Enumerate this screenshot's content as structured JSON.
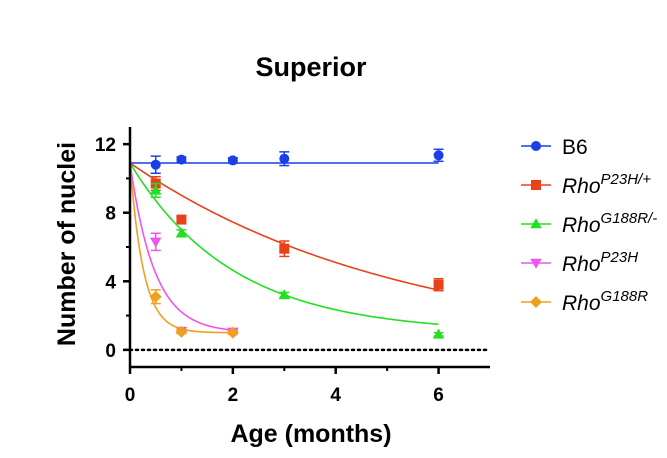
{
  "chart_data": {
    "type": "scatter",
    "title": "Superior",
    "xlabel": "Age (months)",
    "ylabel": "Number of nuclei",
    "xlim": [
      0,
      7
    ],
    "ylim": [
      -1,
      13
    ],
    "xticks": [
      0,
      2,
      4,
      6
    ],
    "yticks": [
      0,
      4,
      8,
      12
    ],
    "reference_line_y": 0,
    "legend_position": "right",
    "series": [
      {
        "name": "B6",
        "base": "B6",
        "sup": "",
        "color": "#1a3fe6",
        "marker": "circle",
        "points": [
          {
            "x": 0.5,
            "y": 10.8,
            "err": 0.5
          },
          {
            "x": 1,
            "y": 11.1,
            "err": 0.15
          },
          {
            "x": 2,
            "y": 11.05,
            "err": 0.15
          },
          {
            "x": 3,
            "y": 11.15,
            "err": 0.4
          },
          {
            "x": 6,
            "y": 11.35,
            "err": 0.35
          }
        ],
        "fit": {
          "y0": 10.9,
          "plateau": 10.9,
          "k": 0,
          "xmax": 6
        }
      },
      {
        "name": "RhoP23H/+",
        "base": "Rho",
        "sup": "P23H/+",
        "color": "#e8421a",
        "marker": "square",
        "points": [
          {
            "x": 0.5,
            "y": 9.7,
            "err": 0.4
          },
          {
            "x": 1,
            "y": 7.6,
            "err": 0.15
          },
          {
            "x": 3,
            "y": 5.9,
            "err": 0.45
          },
          {
            "x": 6,
            "y": 3.8,
            "err": 0.35
          }
        ],
        "fit": {
          "y0": 10.9,
          "plateau": 0,
          "k": 0.19,
          "xmax": 6
        }
      },
      {
        "name": "RhoG188R/-",
        "base": "Rho",
        "sup": "G188R/-",
        "color": "#22e022",
        "marker": "triangle-up",
        "points": [
          {
            "x": 0.5,
            "y": 9.3,
            "err": 0.4
          },
          {
            "x": 1,
            "y": 6.8,
            "err": 0.2
          },
          {
            "x": 3,
            "y": 3.2,
            "err": 0.15
          },
          {
            "x": 6,
            "y": 0.9,
            "err": 0.1
          }
        ],
        "fit": {
          "y0": 10.9,
          "plateau": 1.0,
          "k": 0.5,
          "xmax": 6
        }
      },
      {
        "name": "RhoP23H",
        "base": "Rho",
        "sup": "P23H",
        "color": "#ee55ee",
        "marker": "triangle-down",
        "points": [
          {
            "x": 0.5,
            "y": 6.3,
            "err": 0.5
          },
          {
            "x": 1,
            "y": 1.1,
            "err": 0.1
          },
          {
            "x": 2,
            "y": 1.05,
            "err": 0.1
          }
        ],
        "fit": {
          "y0": 10.9,
          "plateau": 1.0,
          "k": 2.1,
          "xmax": 2
        }
      },
      {
        "name": "RhoG188R",
        "base": "Rho",
        "sup": "G188R",
        "color": "#f0a020",
        "marker": "diamond",
        "points": [
          {
            "x": 0.5,
            "y": 3.1,
            "err": 0.4
          },
          {
            "x": 1,
            "y": 1.05,
            "err": 0.1
          },
          {
            "x": 2,
            "y": 1.0,
            "err": 0.1
          }
        ],
        "fit": {
          "y0": 10.9,
          "plateau": 1.0,
          "k": 3.8,
          "xmax": 2
        }
      }
    ]
  }
}
